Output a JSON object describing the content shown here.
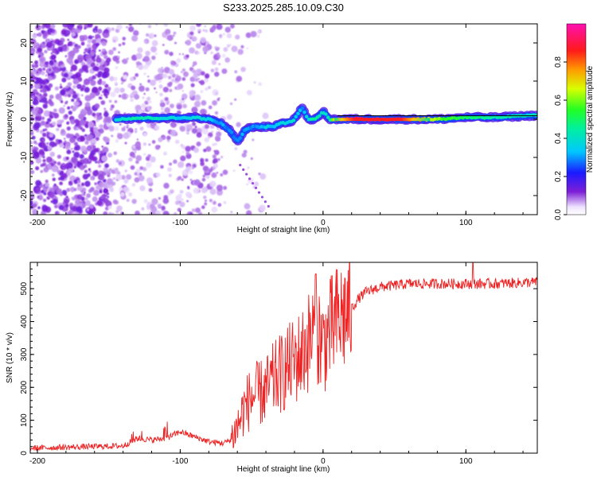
{
  "title": "S233.2025.285.10.09.C30",
  "colors": {
    "snr_line": "#ee2222",
    "specgram_main": "#7a1fd6",
    "axis": "#000000",
    "background": "#ffffff"
  },
  "chart_data": [
    {
      "type": "heatmap",
      "name": "spectrogram",
      "title": "",
      "xlabel": "Height of straight line (km)",
      "ylabel": "Frequency (Hz)",
      "xlim": [
        -205,
        150
      ],
      "ylim": [
        -25,
        25
      ],
      "x_ticks": [
        -200,
        -100,
        0,
        100
      ],
      "y_ticks": [
        -20,
        -10,
        0,
        10,
        20
      ],
      "colorbar": {
        "label": "Normalized spectral amplitude",
        "range": [
          0.0,
          1.0
        ],
        "ticks": [
          0.0,
          0.2,
          0.4,
          0.6,
          0.8
        ],
        "tick_labels": [
          "0.0",
          "0.2",
          "0.4",
          "0.6",
          "0.8"
        ],
        "colormap": "rainbow (white-purple-blue-cyan-green-yellow-red-magenta)"
      },
      "signal_track": {
        "height_km": [
          -145,
          -130,
          -115,
          -100,
          -90,
          -80,
          -72,
          -65,
          -60,
          -55,
          -50,
          -45,
          -40,
          -35,
          -30,
          -25,
          -20,
          -15,
          -10,
          -5,
          0,
          5,
          10,
          20,
          40,
          60,
          80,
          100,
          120,
          150
        ],
        "freq_hz": [
          0,
          0.3,
          0.3,
          0.3,
          0.5,
          0,
          -1,
          -3,
          -6,
          -3,
          -2,
          -2,
          -2,
          -2,
          -1,
          -1,
          0,
          3,
          0,
          0,
          2,
          0,
          0,
          0,
          0,
          0,
          0,
          0.5,
          0.5,
          1
        ],
        "amplitude": [
          0.4,
          0.45,
          0.4,
          0.35,
          0.4,
          0.35,
          0.3,
          0.3,
          0.3,
          0.3,
          0.3,
          0.3,
          0.35,
          0.35,
          0.35,
          0.35,
          0.4,
          0.3,
          0.4,
          0.45,
          0.4,
          0.45,
          0.9,
          0.95,
          0.95,
          0.9,
          0.6,
          0.5,
          0.45,
          0.4
        ]
      }
    },
    {
      "type": "line",
      "name": "snr",
      "title": "",
      "xlabel": "Height of straight line (km)",
      "ylabel": "SNR (10 * v/v)",
      "xlim": [
        -205,
        150
      ],
      "ylim": [
        0,
        580
      ],
      "x_ticks": [
        -200,
        -100,
        0,
        100
      ],
      "y_ticks": [
        0,
        100,
        200,
        300,
        400,
        500
      ],
      "series": [
        {
          "name": "SNR",
          "x": [
            -205,
            -180,
            -160,
            -140,
            -130,
            -120,
            -110,
            -100,
            -90,
            -80,
            -70,
            -65,
            -60,
            -55,
            -50,
            -45,
            -40,
            -35,
            -30,
            -25,
            -20,
            -15,
            -10,
            -5,
            0,
            5,
            10,
            15,
            20,
            25,
            30,
            40,
            50,
            60,
            80,
            100,
            120,
            150
          ],
          "values": [
            15,
            18,
            20,
            22,
            45,
            40,
            45,
            65,
            50,
            35,
            30,
            40,
            80,
            140,
            170,
            180,
            190,
            220,
            240,
            260,
            280,
            300,
            340,
            380,
            330,
            370,
            400,
            420,
            440,
            470,
            490,
            505,
            510,
            515,
            515,
            515,
            515,
            520
          ]
        }
      ]
    }
  ]
}
